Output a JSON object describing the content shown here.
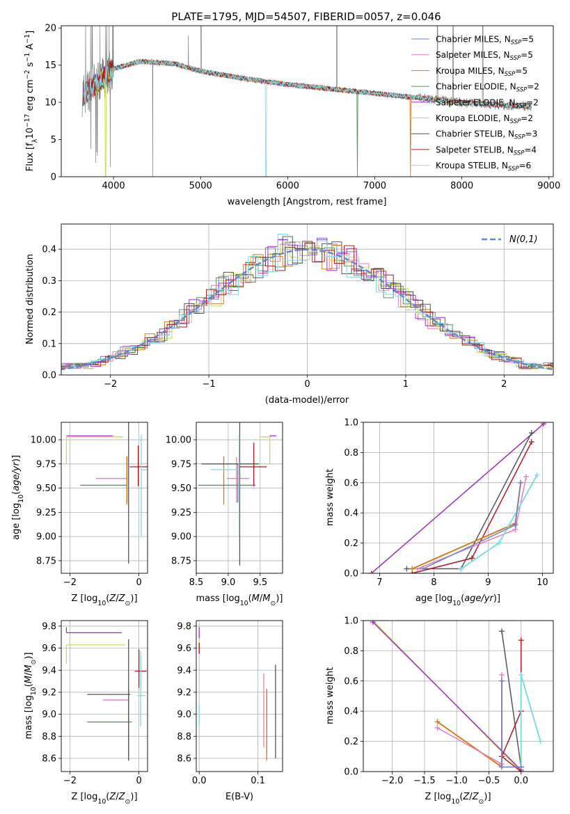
{
  "figure": {
    "title": "PLATE=1795, MJD=54507, FIBERID=0057, z=0.046"
  },
  "models": [
    {
      "name": "Chabrier MILES",
      "nssp": "5",
      "color": "#6f7fd0"
    },
    {
      "name": "Salpeter MILES",
      "nssp": "5",
      "color": "#e77bbd"
    },
    {
      "name": "Kroupa MILES",
      "nssp": "5",
      "color": "#d47d1c"
    },
    {
      "name": "Chabrier ELODIE",
      "nssp": "2",
      "color": "#5d8f5d"
    },
    {
      "name": "Salpeter ELODIE",
      "nssp": "2",
      "color": "#a52fcf"
    },
    {
      "name": "Kroupa ELODIE",
      "nssp": "2",
      "color": "#c8dc4f"
    },
    {
      "name": "Chabrier STELIB",
      "nssp": "3",
      "color": "#555555"
    },
    {
      "name": "Salpeter STELIB",
      "nssp": "4",
      "color": "#b2171c"
    },
    {
      "name": "Kroupa STELIB",
      "nssp": "6",
      "color": "#7fdde0"
    }
  ],
  "chart_data": [
    {
      "id": "spectrum",
      "type": "line",
      "xlabel": "wavelength [Angstrom, rest frame]",
      "ylabel": "Flux [f_λ 10^-17 erg cm^-2 s^-1 A^-1]",
      "xlim": [
        3400,
        9050
      ],
      "ylim": [
        0,
        20.3
      ],
      "xticks": [
        4000,
        5000,
        6000,
        7000,
        8000,
        9000
      ],
      "yticks": [
        0,
        5,
        10,
        15,
        20
      ],
      "legend": "upper right",
      "data_color": "#808080",
      "continuum": {
        "x": [
          3650,
          3800,
          4000,
          4300,
          4700,
          5000,
          5500,
          6000,
          6500,
          7000,
          7500,
          8000,
          8500,
          8800
        ],
        "y": [
          11,
          12.5,
          14.5,
          15.5,
          15.2,
          14.2,
          13.2,
          12.4,
          11.8,
          11.2,
          10.6,
          10.0,
          9.6,
          9.4
        ]
      }
    },
    {
      "id": "residuals",
      "type": "histogram",
      "xlabel": "(data-model)/error",
      "ylabel": "Normed distribution",
      "xlim": [
        -2.5,
        2.5
      ],
      "ylim": [
        0,
        0.48
      ],
      "xticks": [
        -2,
        -1,
        0,
        1,
        2
      ],
      "yticks": [
        0,
        0.1,
        0.2,
        0.3,
        0.4
      ],
      "grid": true,
      "legend": "upper right",
      "reference": {
        "label": "N(0,1)",
        "mu": 0,
        "sigma": 1,
        "color": "#5b87d6"
      },
      "bin_width": 0.1
    },
    {
      "id": "age-vs-Z",
      "type": "scatter",
      "xlabel": "Z [log10(Z/Z⊙)]",
      "ylabel": "age [log10(age/yr)]",
      "xlim": [
        -2.25,
        0.25
      ],
      "ylim": [
        8.62,
        10.18
      ],
      "xticks": [
        -2,
        0
      ],
      "yticks": [
        8.75,
        9.0,
        9.25,
        9.5,
        9.75,
        10.0
      ],
      "grid": true,
      "points": [
        {
          "model": 0,
          "x": -0.35,
          "xerr": [
            0.0,
            0.0
          ],
          "y": 9.55,
          "yerr": [
            0.2,
            0.25
          ]
        },
        {
          "model": 1,
          "x": -0.35,
          "xerr": [
            0.9,
            0.0
          ],
          "y": 9.6,
          "yerr": [
            0.25,
            0.22
          ]
        },
        {
          "model": 2,
          "x": -0.35,
          "xerr": [
            0.0,
            0.0
          ],
          "y": 9.55,
          "yerr": [
            0.22,
            0.28
          ]
        },
        {
          "model": 3,
          "x": -0.35,
          "xerr": [
            1.35,
            0.0
          ],
          "y": 9.53,
          "yerr": [
            0.0,
            0.0
          ]
        },
        {
          "model": 4,
          "x": -2.1,
          "xerr": [
            0.0,
            1.35
          ],
          "y": 10.04,
          "yerr": [
            0.0,
            0.0
          ]
        },
        {
          "model": 5,
          "x": -2.1,
          "xerr": [
            0.0,
            1.65
          ],
          "y": 10.03,
          "yerr": [
            0.28,
            0.0
          ]
        },
        {
          "model": 6,
          "x": -0.3,
          "xerr": [
            0.0,
            0.0
          ],
          "y": 9.72,
          "yerr": [
            1.0,
            1.38
          ]
        },
        {
          "model": 7,
          "x": -0.02,
          "xerr": [
            0.25,
            0.45
          ],
          "y": 9.72,
          "yerr": [
            0.2,
            0.22
          ]
        },
        {
          "model": 8,
          "x": 0.07,
          "xerr": [
            0.0,
            0.22
          ],
          "y": 9.69,
          "yerr": [
            0.69,
            0.36
          ]
        }
      ]
    },
    {
      "id": "age-vs-mass",
      "type": "scatter",
      "xlabel": "mass [log10(M/M⊙)]",
      "ylabel": "",
      "xlim": [
        8.5,
        9.85
      ],
      "ylim": [
        8.62,
        10.18
      ],
      "xticks": [
        8.5,
        9.0,
        9.5
      ],
      "yticks": [
        8.75,
        9.0,
        9.25,
        9.5,
        9.75,
        10.0
      ],
      "grid": true,
      "points": [
        {
          "model": 0,
          "x": 9.15,
          "xerr": [
            0.0,
            0.0
          ],
          "y": 9.55,
          "yerr": [
            0.2,
            0.2
          ]
        },
        {
          "model": 1,
          "x": 9.13,
          "xerr": [
            0.15,
            0.2
          ],
          "y": 9.6,
          "yerr": [
            0.25,
            0.22
          ]
        },
        {
          "model": 2,
          "x": 8.93,
          "xerr": [
            0.0,
            0.0
          ],
          "y": 9.55,
          "yerr": [
            0.22,
            0.28
          ]
        },
        {
          "model": 3,
          "x": 8.93,
          "xerr": [
            0.4,
            0.5
          ],
          "y": 9.53,
          "yerr": [
            0.0,
            0.0
          ]
        },
        {
          "model": 4,
          "x": 9.75,
          "xerr": [
            0.1,
            0.0
          ],
          "y": 10.04,
          "yerr": [
            0.0,
            0.0
          ]
        },
        {
          "model": 5,
          "x": 9.65,
          "xerr": [
            0.15,
            0.03
          ],
          "y": 10.03,
          "yerr": [
            0.28,
            0.0
          ]
        },
        {
          "model": 6,
          "x": 9.18,
          "xerr": [
            0.6,
            0.3
          ],
          "y": 9.75,
          "yerr": [
            1.05,
            1.35
          ]
        },
        {
          "model": 7,
          "x": 9.4,
          "xerr": [
            0.22,
            0.2
          ],
          "y": 9.72,
          "yerr": [
            0.2,
            0.25
          ]
        },
        {
          "model": 8,
          "x": 9.17,
          "xerr": [
            0.45,
            0.0
          ],
          "y": 9.69,
          "yerr": [
            0.69,
            0.36
          ]
        }
      ]
    },
    {
      "id": "massweight-vs-age",
      "type": "line",
      "xlabel": "age [log10(age/yr)]",
      "ylabel": "mass weight",
      "xlim": [
        6.7,
        10.2
      ],
      "ylim": [
        0,
        1.0
      ],
      "xticks": [
        7,
        8,
        9,
        10
      ],
      "yticks": [
        0,
        0.2,
        0.4,
        0.6,
        0.8,
        1.0
      ],
      "grid": true,
      "series": [
        {
          "model": 5,
          "x": [
            6.85,
            10.05
          ],
          "y": [
            0.0,
            1.0
          ]
        },
        {
          "model": 4,
          "x": [
            6.85,
            10.02
          ],
          "y": [
            0.0,
            0.99
          ]
        },
        {
          "model": 6,
          "x": [
            7.5,
            8.5,
            9.8
          ],
          "y": [
            0.03,
            0.03,
            0.93
          ]
        },
        {
          "model": 7,
          "x": [
            7.6,
            8.7,
            9.8
          ],
          "y": [
            0.0,
            0.1,
            0.87
          ]
        },
        {
          "model": 2,
          "x": [
            7.6,
            9.5,
            9.6
          ],
          "y": [
            0.03,
            0.33,
            0.6
          ]
        },
        {
          "model": 1,
          "x": [
            7.7,
            9.5,
            9.7
          ],
          "y": [
            0.03,
            0.29,
            0.64
          ]
        },
        {
          "model": 8,
          "x": [
            8.5,
            9.2,
            9.9
          ],
          "y": [
            0.03,
            0.2,
            0.65
          ]
        },
        {
          "model": 0,
          "x": [
            7.8,
            9.5,
            9.6
          ],
          "y": [
            0.03,
            0.32,
            0.6
          ]
        }
      ]
    },
    {
      "id": "mass-vs-Z",
      "type": "scatter",
      "xlabel": "Z [log10(Z/Z⊙)]",
      "ylabel": "mass [log10(M/M⊙)]",
      "xlim": [
        -2.25,
        0.25
      ],
      "ylim": [
        8.48,
        9.85
      ],
      "xticks": [
        -2,
        0
      ],
      "yticks": [
        8.6,
        8.8,
        9.0,
        9.2,
        9.4,
        9.6,
        9.8
      ],
      "grid": true,
      "points": [
        {
          "model": 0,
          "x": -0.3,
          "xerr": [
            0.0,
            0.0
          ],
          "y": 8.93,
          "yerr": [
            0.35,
            0.3
          ]
        },
        {
          "model": 1,
          "x": -0.3,
          "xerr": [
            0.75,
            0.0
          ],
          "y": 9.13,
          "yerr": [
            0.55,
            0.1
          ]
        },
        {
          "model": 2,
          "x": -0.3,
          "xerr": [
            0.0,
            0.0
          ],
          "y": 8.93,
          "yerr": [
            0.35,
            0.3
          ]
        },
        {
          "model": 3,
          "x": -0.3,
          "xerr": [
            1.2,
            0.1
          ],
          "y": 8.93,
          "yerr": [
            0.0,
            0.0
          ]
        },
        {
          "model": 4,
          "x": -2.1,
          "xerr": [
            0.0,
            1.6
          ],
          "y": 9.74,
          "yerr": [
            0.0,
            0.05
          ]
        },
        {
          "model": 5,
          "x": -2.1,
          "xerr": [
            0.0,
            1.7
          ],
          "y": 9.63,
          "yerr": [
            0.17,
            0.0
          ]
        },
        {
          "model": 6,
          "x": -0.3,
          "xerr": [
            1.2,
            0.05
          ],
          "y": 9.18,
          "yerr": [
            0.6,
            0.5
          ]
        },
        {
          "model": 7,
          "x": 0.0,
          "xerr": [
            0.12,
            0.22
          ],
          "y": 9.39,
          "yerr": [
            0.15,
            0.2
          ]
        },
        {
          "model": 8,
          "x": 0.05,
          "xerr": [
            0.1,
            0.15
          ],
          "y": 9.17,
          "yerr": [
            0.28,
            0.4
          ]
        }
      ]
    },
    {
      "id": "mass-vs-EBV",
      "type": "scatter",
      "xlabel": "E(B-V)",
      "ylabel": "",
      "xlim": [
        -0.005,
        0.142
      ],
      "ylim": [
        8.48,
        9.85
      ],
      "xticks": [
        0.0,
        0.1
      ],
      "yticks": [
        8.6,
        8.8,
        9.0,
        9.2,
        9.4,
        9.6,
        9.8
      ],
      "grid": true,
      "points": [
        {
          "model": 0,
          "x": 0.115,
          "xerr": [
            0.0,
            0.0
          ],
          "y": 8.93,
          "yerr": [
            0.3,
            0.3
          ]
        },
        {
          "model": 1,
          "x": 0.11,
          "xerr": [
            0.0,
            0.0
          ],
          "y": 9.0,
          "yerr": [
            0.3,
            0.37
          ]
        },
        {
          "model": 2,
          "x": 0.115,
          "xerr": [
            0.0,
            0.0
          ],
          "y": 8.93,
          "yerr": [
            0.35,
            0.3
          ]
        },
        {
          "model": 3,
          "x": 0.0,
          "xerr": [
            0.0,
            0.0
          ],
          "y": 9.6,
          "yerr": [
            0.05,
            0.05
          ]
        },
        {
          "model": 4,
          "x": 0.0,
          "xerr": [
            0.0,
            0.0
          ],
          "y": 9.74,
          "yerr": [
            0.05,
            0.05
          ]
        },
        {
          "model": 5,
          "x": 0.0,
          "xerr": [
            0.0,
            0.0
          ],
          "y": 9.63,
          "yerr": [
            0.05,
            0.05
          ]
        },
        {
          "model": 6,
          "x": 0.13,
          "xerr": [
            0.0,
            0.0
          ],
          "y": 9.0,
          "yerr": [
            0.4,
            0.45
          ]
        },
        {
          "model": 7,
          "x": 0.0,
          "xerr": [
            0.0,
            0.0
          ],
          "y": 9.6,
          "yerr": [
            0.05,
            0.05
          ]
        },
        {
          "model": 8,
          "x": 0.0,
          "xerr": [
            0.0,
            0.0
          ],
          "y": 9.0,
          "yerr": [
            0.1,
            0.1
          ]
        }
      ]
    },
    {
      "id": "massweight-vs-Z",
      "type": "line",
      "xlabel": "Z [log10(Z/Z⊙)]",
      "ylabel": "mass weight",
      "xlim": [
        -2.45,
        0.5
      ],
      "ylim": [
        0,
        1.0
      ],
      "xticks": [
        -2.0,
        -1.5,
        -1.0,
        -0.5,
        0.0
      ],
      "yticks": [
        0,
        0.2,
        0.4,
        0.6,
        0.8,
        1.0
      ],
      "grid": true,
      "series": [
        {
          "model": 5,
          "x": [
            -2.3,
            0.0
          ],
          "y": [
            1.0,
            0.0
          ]
        },
        {
          "model": 4,
          "x": [
            -2.3,
            0.0
          ],
          "y": [
            0.99,
            0.01
          ]
        },
        {
          "model": 6,
          "x": [
            -0.3,
            0.0,
            0.0
          ],
          "y": [
            0.93,
            0.03,
            0.03
          ]
        },
        {
          "model": 7,
          "x": [
            0.0,
            0.0,
            -0.3,
            0.0
          ],
          "y": [
            0.87,
            0.4,
            0.1,
            0.0
          ]
        },
        {
          "model": 2,
          "x": [
            -1.3,
            -0.3,
            -0.3
          ],
          "y": [
            0.33,
            0.03,
            0.6
          ]
        },
        {
          "model": 1,
          "x": [
            -1.3,
            -0.3,
            -0.3
          ],
          "y": [
            0.29,
            0.05,
            0.64
          ]
        },
        {
          "model": 8,
          "x": [
            0.3,
            0.0,
            0.0,
            0.0
          ],
          "y": [
            0.2,
            0.64,
            0.2,
            0.03
          ]
        },
        {
          "model": 0,
          "x": [
            -0.3,
            -0.3,
            0.0
          ],
          "y": [
            0.6,
            0.03,
            0.03
          ]
        }
      ]
    }
  ]
}
